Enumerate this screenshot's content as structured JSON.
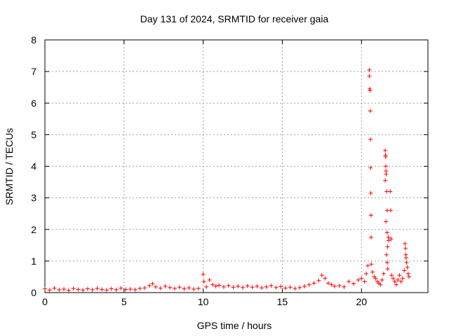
{
  "chart_data": {
    "type": "scatter",
    "title": "Day 131 of 2024, SRMTID for receiver gaia",
    "xlabel": "GPS time / hours",
    "ylabel": "SRMTID / TECUs",
    "xlim": [
      0,
      24.2
    ],
    "ylim": [
      0,
      8
    ],
    "xticks": [
      0,
      5,
      10,
      15,
      20
    ],
    "yticks": [
      0,
      1,
      2,
      3,
      4,
      5,
      6,
      7,
      8
    ],
    "grid": true,
    "marker": "+",
    "color": "#ff0000",
    "series": [
      {
        "name": "SRMTID",
        "points": [
          [
            0.0,
            0.12
          ],
          [
            0.3,
            0.08
          ],
          [
            0.6,
            0.14
          ],
          [
            0.9,
            0.09
          ],
          [
            1.2,
            0.11
          ],
          [
            1.5,
            0.07
          ],
          [
            1.8,
            0.13
          ],
          [
            2.1,
            0.1
          ],
          [
            2.4,
            0.08
          ],
          [
            2.7,
            0.12
          ],
          [
            3.0,
            0.09
          ],
          [
            3.3,
            0.13
          ],
          [
            3.6,
            0.1
          ],
          [
            3.9,
            0.08
          ],
          [
            4.2,
            0.12
          ],
          [
            4.5,
            0.09
          ],
          [
            4.8,
            0.14
          ],
          [
            5.1,
            0.1
          ],
          [
            5.4,
            0.11
          ],
          [
            5.7,
            0.09
          ],
          [
            6.0,
            0.13
          ],
          [
            6.3,
            0.15
          ],
          [
            6.6,
            0.22
          ],
          [
            6.8,
            0.28
          ],
          [
            7.0,
            0.18
          ],
          [
            7.3,
            0.14
          ],
          [
            7.6,
            0.2
          ],
          [
            7.9,
            0.16
          ],
          [
            8.2,
            0.13
          ],
          [
            8.5,
            0.17
          ],
          [
            8.8,
            0.12
          ],
          [
            9.1,
            0.15
          ],
          [
            9.4,
            0.11
          ],
          [
            9.7,
            0.13
          ],
          [
            10.0,
            0.58
          ],
          [
            10.05,
            0.35
          ],
          [
            10.2,
            0.18
          ],
          [
            10.4,
            0.4
          ],
          [
            10.6,
            0.25
          ],
          [
            10.8,
            0.2
          ],
          [
            11.0,
            0.23
          ],
          [
            11.3,
            0.18
          ],
          [
            11.6,
            0.22
          ],
          [
            11.9,
            0.17
          ],
          [
            12.2,
            0.2
          ],
          [
            12.5,
            0.16
          ],
          [
            12.8,
            0.21
          ],
          [
            13.1,
            0.17
          ],
          [
            13.4,
            0.2
          ],
          [
            13.7,
            0.15
          ],
          [
            14.0,
            0.18
          ],
          [
            14.3,
            0.22
          ],
          [
            14.6,
            0.16
          ],
          [
            14.9,
            0.19
          ],
          [
            15.2,
            0.14
          ],
          [
            15.5,
            0.17
          ],
          [
            15.8,
            0.13
          ],
          [
            16.1,
            0.16
          ],
          [
            16.4,
            0.2
          ],
          [
            16.7,
            0.25
          ],
          [
            17.0,
            0.3
          ],
          [
            17.3,
            0.38
          ],
          [
            17.5,
            0.55
          ],
          [
            17.7,
            0.45
          ],
          [
            17.9,
            0.3
          ],
          [
            18.1,
            0.25
          ],
          [
            18.3,
            0.2
          ],
          [
            18.6,
            0.22
          ],
          [
            18.9,
            0.18
          ],
          [
            19.2,
            0.35
          ],
          [
            19.5,
            0.28
          ],
          [
            19.8,
            0.4
          ],
          [
            20.0,
            0.45
          ],
          [
            20.2,
            0.35
          ],
          [
            20.3,
            0.6
          ],
          [
            20.4,
            0.85
          ],
          [
            20.5,
            7.05
          ],
          [
            20.5,
            6.85
          ],
          [
            20.52,
            6.45
          ],
          [
            20.54,
            6.4
          ],
          [
            20.56,
            5.75
          ],
          [
            20.57,
            4.85
          ],
          [
            20.58,
            3.95
          ],
          [
            20.59,
            3.15
          ],
          [
            20.6,
            2.45
          ],
          [
            20.61,
            1.75
          ],
          [
            20.62,
            0.9
          ],
          [
            20.7,
            0.65
          ],
          [
            20.8,
            0.5
          ],
          [
            20.9,
            0.45
          ],
          [
            21.0,
            0.35
          ],
          [
            21.1,
            0.3
          ],
          [
            21.2,
            0.25
          ],
          [
            21.3,
            0.4
          ],
          [
            21.4,
            0.6
          ],
          [
            21.5,
            4.5
          ],
          [
            21.52,
            4.35
          ],
          [
            21.53,
            4.3
          ],
          [
            21.54,
            4.0
          ],
          [
            21.55,
            3.85
          ],
          [
            21.56,
            3.75
          ],
          [
            21.5,
            3.55
          ],
          [
            21.6,
            3.2
          ],
          [
            21.62,
            2.6
          ],
          [
            21.55,
            2.25
          ],
          [
            21.62,
            1.9
          ],
          [
            21.7,
            1.75
          ],
          [
            21.72,
            1.65
          ],
          [
            21.65,
            1.45
          ],
          [
            21.58,
            1.2
          ],
          [
            21.63,
            0.95
          ],
          [
            21.66,
            0.75
          ],
          [
            21.82,
            3.2
          ],
          [
            21.85,
            2.6
          ],
          [
            21.88,
            1.7
          ],
          [
            21.9,
            0.55
          ],
          [
            22.0,
            0.45
          ],
          [
            22.1,
            0.35
          ],
          [
            22.2,
            0.25
          ],
          [
            22.3,
            0.4
          ],
          [
            22.4,
            0.55
          ],
          [
            22.5,
            0.35
          ],
          [
            22.6,
            0.45
          ],
          [
            22.7,
            0.7
          ],
          [
            22.75,
            1.55
          ],
          [
            22.78,
            1.4
          ],
          [
            22.8,
            1.2
          ],
          [
            22.82,
            1.1
          ],
          [
            22.85,
            0.95
          ],
          [
            22.9,
            0.8
          ],
          [
            22.95,
            0.6
          ],
          [
            23.0,
            0.5
          ]
        ]
      }
    ]
  }
}
